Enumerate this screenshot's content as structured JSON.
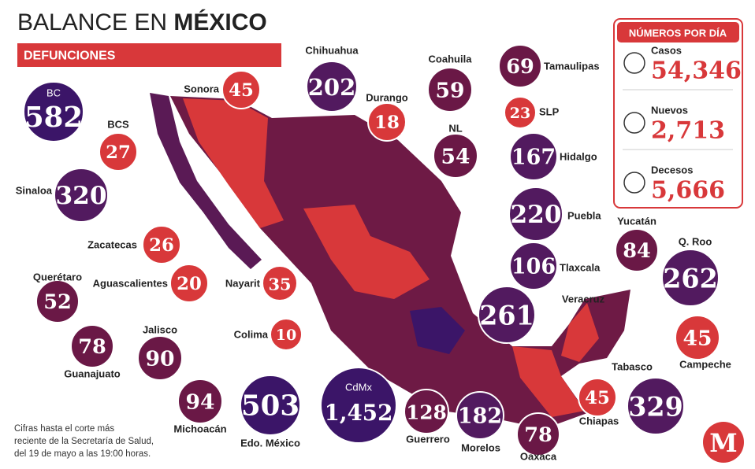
{
  "header": {
    "title_light": "BALANCE EN",
    "title_bold": "MÉXICO",
    "subtitle": "DEFUNCIONES"
  },
  "states": [
    {
      "name": "BC",
      "value": "582",
      "color": "#3b1568"
    },
    {
      "name": "Sonora",
      "value": "45",
      "color": "#d8383a"
    },
    {
      "name": "Chihuahua",
      "value": "202",
      "color": "#521a5f"
    },
    {
      "name": "Durango",
      "value": "18",
      "color": "#d8383a"
    },
    {
      "name": "Coahuila",
      "value": "59",
      "color": "#6a1846"
    },
    {
      "name": "Tamaulipas",
      "value": "69",
      "color": "#6a1846"
    },
    {
      "name": "SLP",
      "value": "23",
      "color": "#d8383a"
    },
    {
      "name": "NL",
      "value": "54",
      "color": "#6a1846"
    },
    {
      "name": "Hidalgo",
      "value": "167",
      "color": "#521a5f"
    },
    {
      "name": "BCS",
      "value": "27",
      "color": "#d8383a"
    },
    {
      "name": "Sinaloa",
      "value": "320",
      "color": "#521a5f"
    },
    {
      "name": "Puebla",
      "value": "220",
      "color": "#521a5f"
    },
    {
      "name": "Zacatecas",
      "value": "26",
      "color": "#d8383a"
    },
    {
      "name": "Aguascalientes",
      "value": "20",
      "color": "#d8383a"
    },
    {
      "name": "Nayarit",
      "value": "35",
      "color": "#d8383a"
    },
    {
      "name": "Tlaxcala",
      "value": "106",
      "color": "#521a5f"
    },
    {
      "name": "Yucatán",
      "value": "84",
      "color": "#6a1846"
    },
    {
      "name": "Q. Roo",
      "value": "262",
      "color": "#521a5f"
    },
    {
      "name": "Querétaro",
      "value": "52",
      "color": "#6a1846"
    },
    {
      "name": "Veracruz",
      "value": "261",
      "color": "#521a5f"
    },
    {
      "name": "Campeche",
      "value": "45",
      "color": "#d8383a"
    },
    {
      "name": "Jalisco",
      "value": "90",
      "color": "#6a1846"
    },
    {
      "name": "Colima",
      "value": "10",
      "color": "#d8383a"
    },
    {
      "name": "Guanajuato",
      "value": "78",
      "color": "#6a1846"
    },
    {
      "name": "Tabasco",
      "value": "329",
      "color": "#521a5f"
    },
    {
      "name": "Michoacán",
      "value": "94",
      "color": "#6a1846"
    },
    {
      "name": "Edo. México",
      "value": "503",
      "color": "#3b1568"
    },
    {
      "name": "CdMx",
      "value": "1,452",
      "color": "#3b1568"
    },
    {
      "name": "Guerrero",
      "value": "128",
      "color": "#6a1846"
    },
    {
      "name": "Morelos",
      "value": "182",
      "color": "#521a5f"
    },
    {
      "name": "Chiapas",
      "value": "45",
      "color": "#d8383a"
    },
    {
      "name": "Oaxaca",
      "value": "78",
      "color": "#6a1846"
    }
  ],
  "summary": {
    "title": "NÚMEROS POR DÍA",
    "items": [
      {
        "label": "Casos",
        "value": "54,346"
      },
      {
        "label": "Nuevos",
        "value": "2,713"
      },
      {
        "label": "Decesos",
        "value": "5,666"
      }
    ]
  },
  "footnote": [
    "Cifras hasta el corte más",
    "reciente de la Secretaría de Salud,",
    "del 19 de mayo a las 19:00 horas."
  ],
  "logo": "M"
}
